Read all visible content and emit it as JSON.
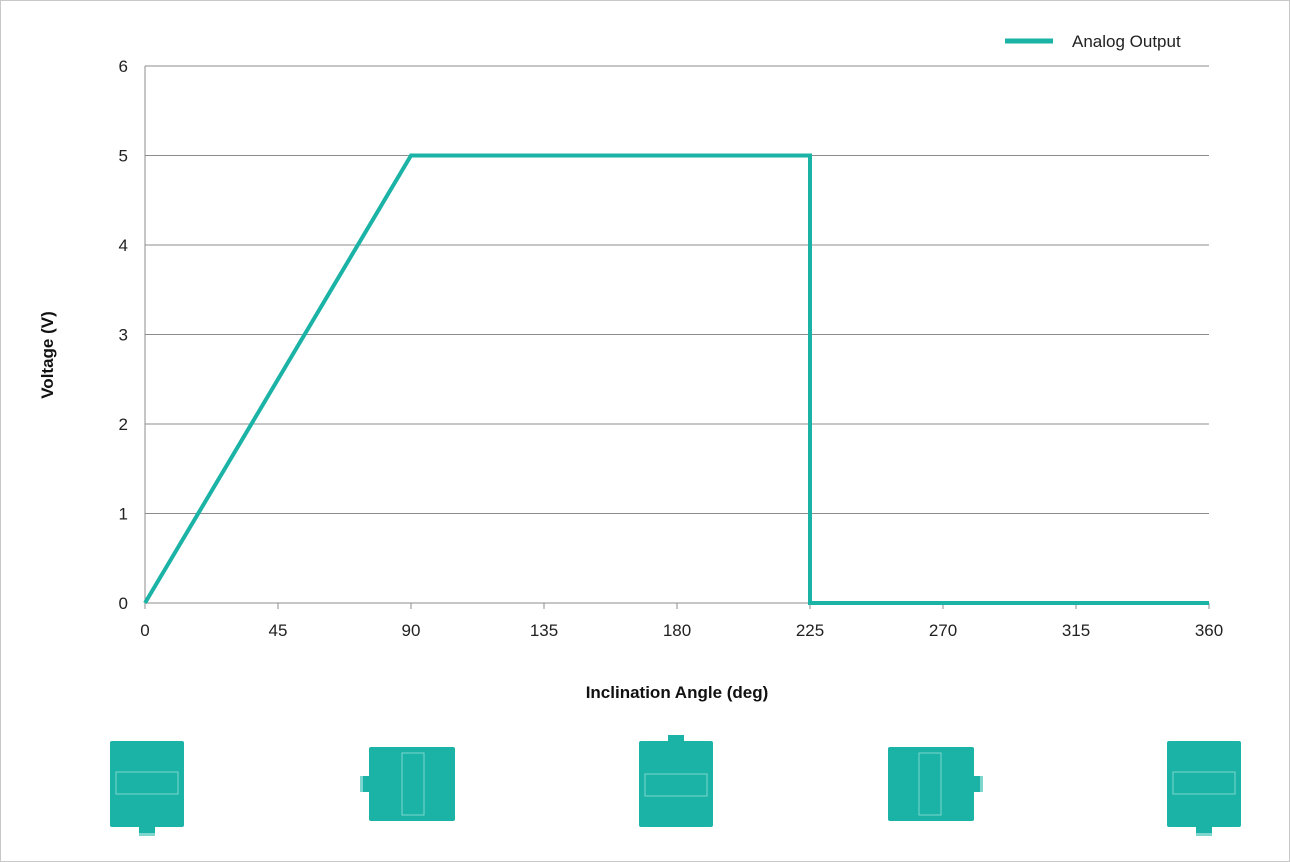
{
  "chart_data": {
    "type": "line",
    "xlabel": "Inclination Angle (deg)",
    "ylabel": "Voltage (V)",
    "xlim": [
      0,
      360
    ],
    "ylim": [
      0,
      6
    ],
    "xticks": [
      0,
      45,
      90,
      135,
      180,
      225,
      270,
      315,
      360
    ],
    "yticks": [
      0,
      1,
      2,
      3,
      4,
      5,
      6
    ],
    "grid": "horizontal",
    "legend": "top-right",
    "series": [
      {
        "name": "Analog Output",
        "color": "#1ab3a6",
        "x": [
          0,
          90,
          225,
          225,
          360
        ],
        "y": [
          0,
          5,
          5,
          0,
          0
        ]
      }
    ]
  },
  "orientation_icons": [
    {
      "icon": "sensor-connector-bottom-icon",
      "angle": 0
    },
    {
      "icon": "sensor-connector-left-icon",
      "angle": 90
    },
    {
      "icon": "sensor-connector-top-icon",
      "angle": 180
    },
    {
      "icon": "sensor-connector-right-icon",
      "angle": 270
    },
    {
      "icon": "sensor-connector-bottom-icon",
      "angle": 360
    }
  ],
  "colors": {
    "line": "#1ab3a6",
    "icon_fill": "#1ab3a6",
    "icon_detail": "#7fd6ce",
    "grid": "#8c8c8c"
  }
}
